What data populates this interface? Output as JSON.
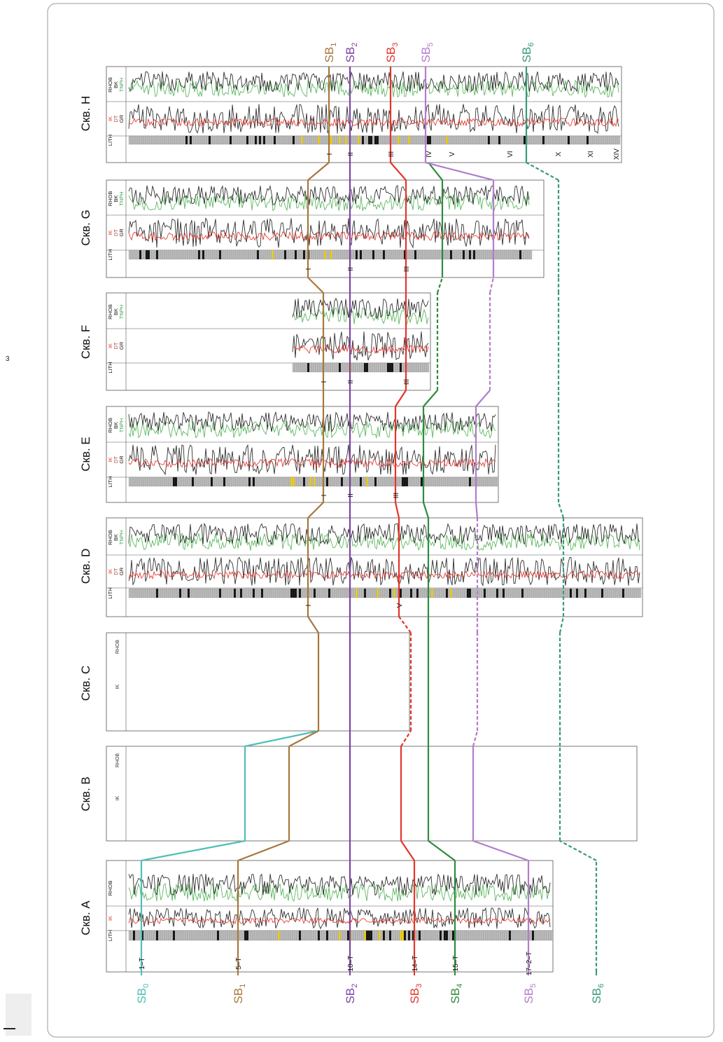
{
  "wells": [
    {
      "id": "A",
      "label": "Скв. A",
      "tracks": [
        "LITH",
        "IK",
        "RHOB"
      ],
      "zone_markers": [
        "1–T",
        "5–T",
        "10–T",
        "14–T",
        "15–T",
        "17–2–T"
      ]
    },
    {
      "id": "B",
      "label": "Скв. B",
      "tracks": [
        "IK",
        "RHOB"
      ],
      "zone_markers": []
    },
    {
      "id": "C",
      "label": "Скв. C",
      "tracks": [
        "IK",
        "RHOB"
      ],
      "zone_markers": []
    },
    {
      "id": "D",
      "label": "Скв. D",
      "tracks": [
        "LITH",
        "IK DT GR",
        "RHOB BK TNPH"
      ],
      "zone_markers": [
        "I",
        "V"
      ]
    },
    {
      "id": "E",
      "label": "Скв. E",
      "tracks": [
        "LITH",
        "IK DT GR",
        "RHOB BK TNPH"
      ],
      "zone_markers": [
        "I",
        "II",
        "III"
      ]
    },
    {
      "id": "F",
      "label": "Скв. F",
      "tracks": [
        "LITH",
        "IK DT GR",
        "RHOB BK TNPH"
      ],
      "zone_markers": [
        "I",
        "II",
        "III"
      ]
    },
    {
      "id": "G",
      "label": "Скв. G",
      "tracks": [
        "LITH",
        "IK DT GR",
        "RHOB BK TNPH"
      ],
      "zone_markers": [
        "I",
        "II",
        "III"
      ]
    },
    {
      "id": "H",
      "label": "Скв. H",
      "tracks": [
        "LITH",
        "IK DT GR",
        "RHOB BK TNPH"
      ],
      "zone_markers": [
        "I",
        "II",
        "III",
        "IV",
        "V",
        "VI",
        "X",
        "XI",
        "XIV"
      ]
    }
  ],
  "boundaries": [
    {
      "id": "SB0",
      "main": "SB",
      "sub": "0",
      "color": "#4dbfb5"
    },
    {
      "id": "SB1",
      "main": "SB",
      "sub": "1",
      "color": "#a8773d"
    },
    {
      "id": "SB2",
      "main": "SB",
      "sub": "2",
      "color": "#7d44a3"
    },
    {
      "id": "SB3",
      "main": "SB",
      "sub": "3",
      "color": "#e5342a"
    },
    {
      "id": "SB4",
      "main": "SB",
      "sub": "4",
      "color": "#2e8b3e"
    },
    {
      "id": "SB5",
      "main": "SB",
      "sub": "5",
      "color": "#b47ccc"
    },
    {
      "id": "SB6",
      "main": "SB",
      "sub": "6",
      "color": "#3a9a78"
    }
  ],
  "curve_colors": {
    "black": "#1a1a1a",
    "red": "#e0352b",
    "green": "#4cb050",
    "lith_gray": "#bdbdbd",
    "lith_black": "#111111",
    "lith_yellow": "#f2d21b"
  },
  "page_mark": "3"
}
